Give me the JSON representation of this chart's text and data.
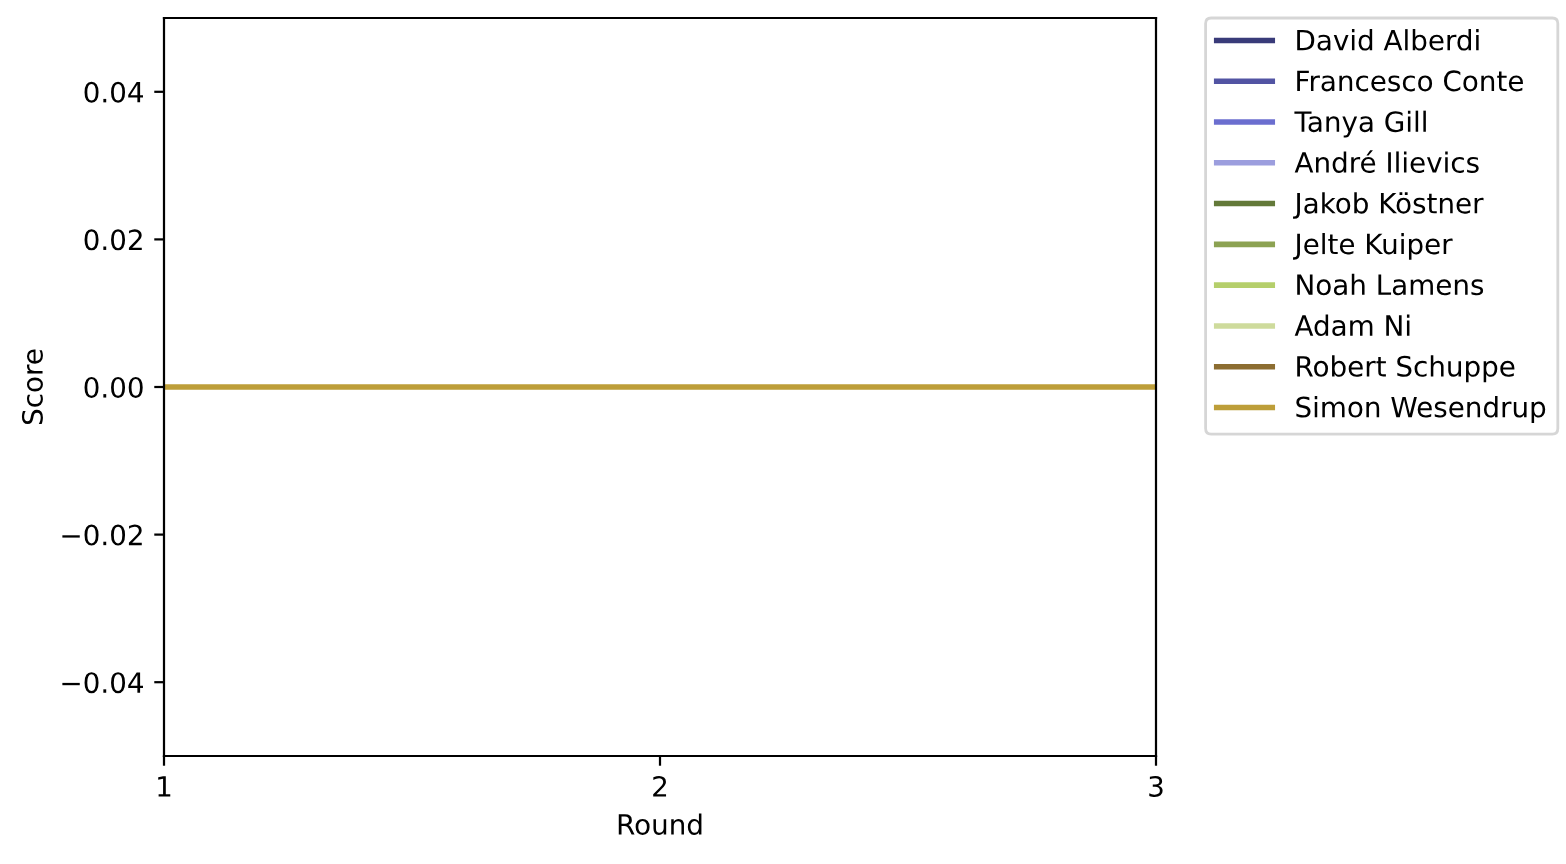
{
  "chart_data": {
    "type": "line",
    "xlabel": "Round",
    "ylabel": "Score",
    "categories": [
      "1",
      "2",
      "3"
    ],
    "series": [
      {
        "name": "David Alberdi",
        "color": "#393b79",
        "values": [
          null,
          null,
          null
        ]
      },
      {
        "name": "Francesco Conte",
        "color": "#5254a3",
        "values": [
          null,
          null,
          null
        ]
      },
      {
        "name": "Tanya Gill",
        "color": "#6b6ecf",
        "values": [
          null,
          null,
          null
        ]
      },
      {
        "name": "André Ilievics",
        "color": "#9c9ede",
        "values": [
          null,
          null,
          null
        ]
      },
      {
        "name": "Jakob Köstner",
        "color": "#637939",
        "values": [
          null,
          null,
          null
        ]
      },
      {
        "name": "Jelte Kuiper",
        "color": "#8ca252",
        "values": [
          null,
          null,
          null
        ]
      },
      {
        "name": "Noah Lamens",
        "color": "#b5cf6b",
        "values": [
          null,
          null,
          null
        ]
      },
      {
        "name": "Adam Ni",
        "color": "#cedb9c",
        "values": [
          null,
          null,
          null
        ]
      },
      {
        "name": "Robert Schuppe",
        "color": "#8c6d31",
        "values": [
          null,
          null,
          null
        ]
      },
      {
        "name": "Simon Wesendrup",
        "color": "#bd9e39",
        "values": [
          0,
          0,
          0
        ]
      }
    ],
    "ylim": [
      -0.05,
      0.05
    ],
    "yticks": [
      {
        "value": -0.04,
        "label": "−0.04"
      },
      {
        "value": -0.02,
        "label": "−0.02"
      },
      {
        "value": 0,
        "label": "0.00"
      },
      {
        "value": 0.02,
        "label": "0.02"
      },
      {
        "value": 0.04,
        "label": "0.04"
      }
    ],
    "legend": "top right",
    "marker": "none",
    "line_style": "solid"
  }
}
